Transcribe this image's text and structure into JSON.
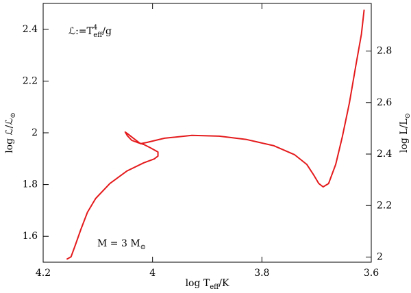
{
  "chart_data": {
    "type": "line",
    "x_label": [
      {
        "text": "log T"
      },
      {
        "text": "eff",
        "shift": "sub"
      },
      {
        "text": "/K"
      }
    ],
    "y_label": [
      {
        "text": "log ℒ/ℒ"
      },
      {
        "text": "⊙",
        "shift": "sub"
      }
    ],
    "y2_label": [
      {
        "text": "log L/L"
      },
      {
        "text": "⊙",
        "shift": "sub"
      }
    ],
    "annotations": [
      [
        {
          "text": "ℒ:=T"
        },
        {
          "text": "4",
          "shift": "super"
        },
        {
          "text": "eff",
          "shift": "sub"
        },
        {
          "text": "/g"
        }
      ],
      [
        {
          "text": "M  =  3  M"
        },
        {
          "text": "⊙",
          "shift": "sub"
        }
      ]
    ],
    "x": [
      4.157,
      4.149,
      4.142,
      4.131,
      4.119,
      4.104,
      4.078,
      4.047,
      4.016,
      3.997,
      3.99,
      3.99,
      4.004,
      4.016,
      4.028,
      4.038,
      4.046,
      4.05,
      4.046,
      4.035,
      4.022,
      4.01,
      3.978,
      3.928,
      3.878,
      3.828,
      3.778,
      3.74,
      3.718,
      3.705,
      3.696,
      3.688,
      3.678,
      3.665,
      3.653,
      3.64,
      3.628,
      3.618,
      3.613
    ],
    "series": [
      {
        "color": "#e41a1c",
        "values": [
          1.511,
          1.521,
          1.561,
          1.627,
          1.693,
          1.746,
          1.804,
          1.852,
          1.884,
          1.899,
          1.91,
          1.926,
          1.942,
          1.955,
          1.963,
          1.971,
          1.989,
          2.003,
          1.997,
          1.979,
          1.958,
          1.963,
          1.979,
          1.99,
          1.987,
          1.974,
          1.95,
          1.915,
          1.878,
          1.836,
          1.804,
          1.791,
          1.804,
          1.878,
          1.984,
          2.116,
          2.262,
          2.381,
          2.476
        ]
      }
    ],
    "xlim": [
      4.2,
      3.6
    ],
    "xticks": [
      {
        "value": 4.2,
        "label": "4.2"
      },
      4,
      {
        "value": 3.8,
        "label": "3.8"
      },
      {
        "value": 3.6,
        "label": "3.6"
      }
    ],
    "ylim": [
      1.5,
      2.5
    ],
    "yticks": [
      {
        "value": 1.6,
        "label": "1.6"
      },
      {
        "value": 1.8,
        "label": "1.8"
      },
      2,
      {
        "value": 2.2,
        "label": "2.2"
      },
      {
        "value": 2.4,
        "label": "2.4"
      }
    ],
    "y2lim": [
      1.98,
      2.985
    ],
    "y2ticks": [
      2,
      {
        "value": 2.2,
        "label": "2.2"
      },
      {
        "value": 2.4,
        "label": "2.4"
      },
      {
        "value": 2.6,
        "label": "2.6"
      },
      {
        "value": 2.8,
        "label": "2.8"
      }
    ]
  }
}
